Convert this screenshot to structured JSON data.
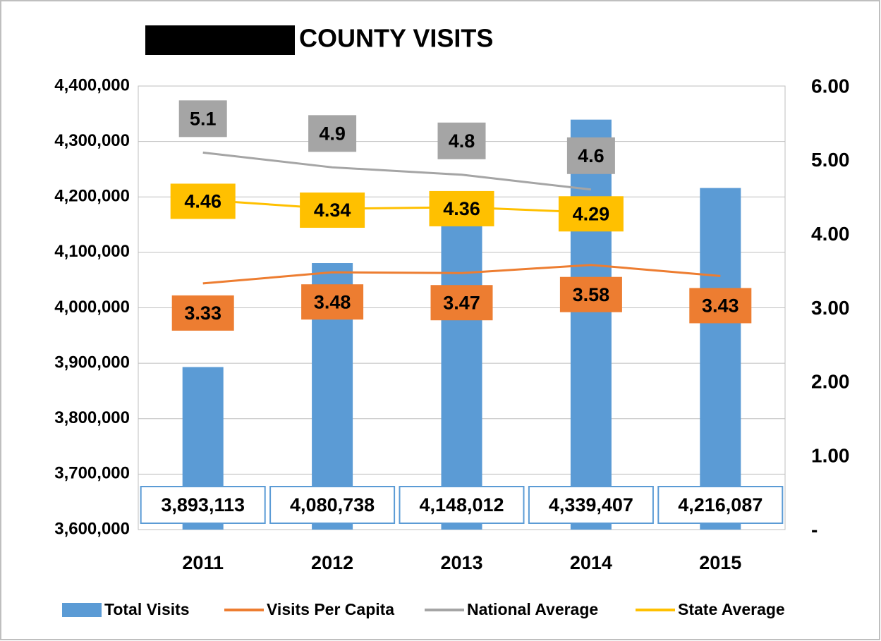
{
  "chart_data": {
    "type": "bar",
    "title": "COUNTY VISITS",
    "categories": [
      "2011",
      "2012",
      "2013",
      "2014",
      "2015"
    ],
    "series": [
      {
        "name": "Total Visits",
        "type": "bar",
        "color": "#5b9bd5",
        "values": [
          3893113,
          4080738,
          4148012,
          4339407,
          4216087
        ],
        "value_labels": [
          "3,893,113",
          "4,080,738",
          "4,148,012",
          "4,339,407",
          "4,216,087"
        ]
      },
      {
        "name": "Visits Per Capita",
        "type": "line",
        "axis": "y2",
        "color": "#ed7d31",
        "values": [
          3.33,
          3.48,
          3.47,
          3.58,
          3.43
        ]
      },
      {
        "name": "National Average",
        "type": "line",
        "axis": "y2",
        "color": "#a5a5a5",
        "values": [
          5.1,
          4.9,
          4.8,
          4.6,
          null
        ]
      },
      {
        "name": "State Average",
        "type": "line",
        "axis": "y2",
        "color": "#ffc000",
        "values": [
          4.46,
          4.34,
          4.36,
          4.29,
          null
        ]
      }
    ],
    "ylim": [
      3600000,
      4400000
    ],
    "yticks": [
      {
        "value": 3600000,
        "label": "3,600,000"
      },
      {
        "value": 3700000,
        "label": "3,700,000"
      },
      {
        "value": 3800000,
        "label": "3,800,000"
      },
      {
        "value": 3900000,
        "label": "3,900,000"
      },
      {
        "value": 4000000,
        "label": "4,000,000"
      },
      {
        "value": 4100000,
        "label": "4,100,000"
      },
      {
        "value": 4200000,
        "label": "4,200,000"
      },
      {
        "value": 4300000,
        "label": "4,300,000"
      },
      {
        "value": 4400000,
        "label": "4,400,000"
      }
    ],
    "y2lim": [
      0,
      6
    ],
    "y2ticks": [
      {
        "value": 0,
        "label": "-"
      },
      {
        "value": 1,
        "label": "1.00"
      },
      {
        "value": 2,
        "label": "2.00"
      },
      {
        "value": 3,
        "label": "3.00"
      },
      {
        "value": 4,
        "label": "4.00"
      },
      {
        "value": 5,
        "label": "5.00"
      },
      {
        "value": 6,
        "label": "6.00"
      }
    ],
    "grid": true,
    "legend": "bottom"
  }
}
